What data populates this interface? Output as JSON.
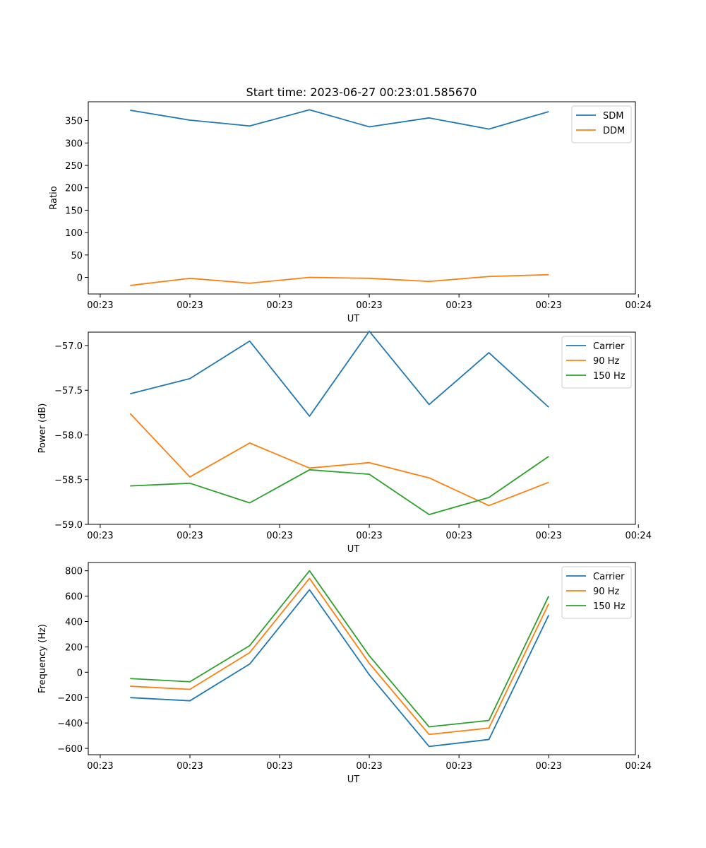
{
  "figure_title": "Start time: 2023-06-27 00:23:01.585670",
  "chart_data": [
    {
      "type": "line",
      "title": "Start time: 2023-06-27 00:23:01.585670",
      "xlabel": "UT",
      "ylabel": "Ratio",
      "x": [
        1,
        2,
        3,
        4,
        5,
        6,
        7,
        8
      ],
      "xlim": [
        0.3,
        9.45
      ],
      "xticks": [
        0.5,
        2,
        3.5,
        5,
        6.5,
        8,
        9.5
      ],
      "xtick_labels": [
        "00:23",
        "00:23",
        "00:23",
        "00:23",
        "00:23",
        "00:23",
        "00:24"
      ],
      "ylim": [
        -37,
        392
      ],
      "yticks": [
        0,
        50,
        100,
        150,
        200,
        250,
        300,
        350
      ],
      "ytick_labels": [
        "0",
        "50",
        "100",
        "150",
        "200",
        "250",
        "300",
        "350"
      ],
      "legend_position": "top-right",
      "grid": false,
      "series": [
        {
          "name": "SDM",
          "color": "#1f77b4",
          "values": [
            373,
            351,
            338,
            374,
            336,
            356,
            331,
            370
          ]
        },
        {
          "name": "DDM",
          "color": "#ff7f0e",
          "values": [
            -18,
            -2,
            -13,
            0,
            -2,
            -9,
            2,
            6
          ]
        }
      ]
    },
    {
      "type": "line",
      "title": "",
      "xlabel": "UT",
      "ylabel": "Power (dB)",
      "x": [
        1,
        2,
        3,
        4,
        5,
        6,
        7,
        8
      ],
      "xlim": [
        0.3,
        9.45
      ],
      "xticks": [
        0.5,
        2,
        3.5,
        5,
        6.5,
        8,
        9.5
      ],
      "xtick_labels": [
        "00:23",
        "00:23",
        "00:23",
        "00:23",
        "00:23",
        "00:23",
        "00:24"
      ],
      "ylim": [
        -59.0,
        -56.85
      ],
      "yticks": [
        -59.0,
        -58.5,
        -58.0,
        -57.5,
        -57.0
      ],
      "ytick_labels": [
        "−59.0",
        "−58.5",
        "−58.0",
        "−57.5",
        "−57.0"
      ],
      "legend_position": "top-right",
      "grid": false,
      "series": [
        {
          "name": "Carrier",
          "color": "#1f77b4",
          "values": [
            -57.54,
            -57.37,
            -56.95,
            -57.79,
            -56.84,
            -57.66,
            -57.08,
            -57.69
          ]
        },
        {
          "name": "90 Hz",
          "color": "#ff7f0e",
          "values": [
            -57.76,
            -58.47,
            -58.09,
            -58.37,
            -58.31,
            -58.48,
            -58.79,
            -58.53
          ]
        },
        {
          "name": "150 Hz",
          "color": "#2ca02c",
          "values": [
            -58.57,
            -58.54,
            -58.76,
            -58.39,
            -58.44,
            -58.89,
            -58.7,
            -58.24
          ]
        }
      ]
    },
    {
      "type": "line",
      "title": "",
      "xlabel": "UT",
      "ylabel": "Frequency (Hz)",
      "x": [
        1,
        2,
        3,
        4,
        5,
        6,
        7,
        8
      ],
      "xlim": [
        0.3,
        9.45
      ],
      "xticks": [
        0.5,
        2,
        3.5,
        5,
        6.5,
        8,
        9.5
      ],
      "xtick_labels": [
        "00:23",
        "00:23",
        "00:23",
        "00:23",
        "00:23",
        "00:23",
        "00:24"
      ],
      "ylim": [
        -650,
        865
      ],
      "yticks": [
        -600,
        -400,
        -200,
        0,
        200,
        400,
        600,
        800
      ],
      "ytick_labels": [
        "−600",
        "−400",
        "−200",
        "0",
        "200",
        "400",
        "600",
        "800"
      ],
      "legend_position": "top-right",
      "grid": false,
      "series": [
        {
          "name": "Carrier",
          "color": "#1f77b4",
          "values": [
            -200,
            -225,
            65,
            650,
            -20,
            -585,
            -530,
            450
          ]
        },
        {
          "name": "90 Hz",
          "color": "#ff7f0e",
          "values": [
            -110,
            -135,
            155,
            740,
            70,
            -490,
            -440,
            540
          ]
        },
        {
          "name": "150 Hz",
          "color": "#2ca02c",
          "values": [
            -50,
            -75,
            210,
            800,
            130,
            -430,
            -380,
            600
          ]
        }
      ]
    }
  ]
}
